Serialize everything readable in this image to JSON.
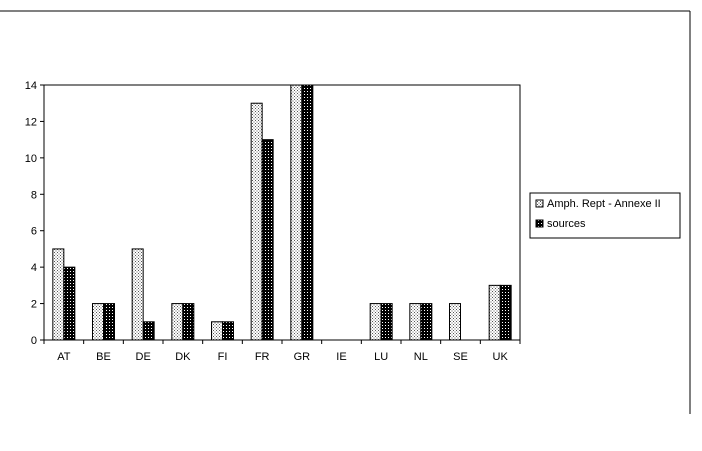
{
  "chart_data": {
    "type": "bar",
    "categories": [
      "AT",
      "BE",
      "DE",
      "DK",
      "FI",
      "FR",
      "GR",
      "IE",
      "LU",
      "NL",
      "SE",
      "UK"
    ],
    "series": [
      {
        "name": "Amph. Rept - Annexe II",
        "values": [
          5,
          2,
          5,
          2,
          1,
          13,
          14,
          0,
          2,
          2,
          2,
          3
        ]
      },
      {
        "name": "sources",
        "values": [
          4,
          2,
          1,
          2,
          1,
          11,
          14,
          0,
          2,
          2,
          0,
          3
        ]
      }
    ],
    "ylim": [
      0,
      14
    ],
    "yticks": [
      0,
      2,
      4,
      6,
      8,
      10,
      12,
      14
    ],
    "ytick_labels": [
      "0",
      "2",
      "4",
      "6",
      "8",
      "10",
      "12",
      "14"
    ],
    "grid": false,
    "legend_position": "right"
  }
}
